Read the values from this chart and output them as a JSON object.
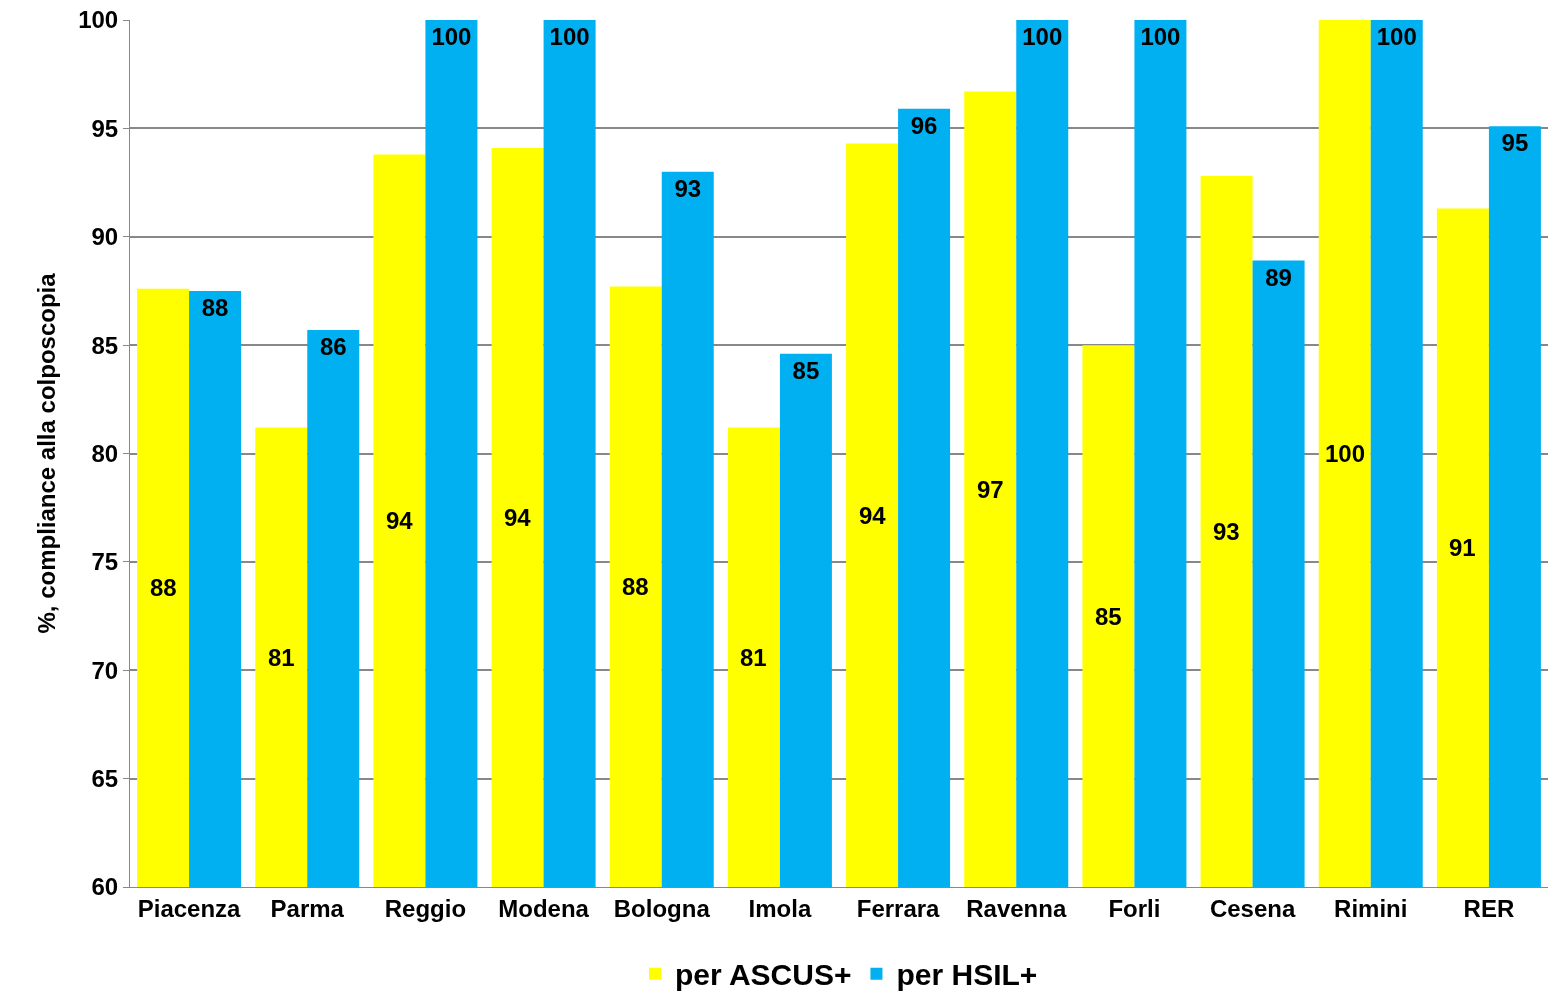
{
  "chart_data": {
    "type": "bar",
    "ylabel": "%, compliance alla colposcopia",
    "categories": [
      "Piacenza",
      "Parma",
      "Reggio",
      "Modena",
      "Bologna",
      "Imola",
      "Ferrara",
      "Ravenna",
      "Forli",
      "Cesena",
      "Rimini",
      "RER"
    ],
    "series": [
      {
        "name": "per ASCUS+",
        "color": "#ffff00",
        "values": [
          87.6,
          81.2,
          93.8,
          94.1,
          87.7,
          81.2,
          94.3,
          96.7,
          85.0,
          92.8,
          100,
          91.3
        ],
        "value_labels": [
          "88",
          "81",
          "94",
          "94",
          "88",
          "81",
          "94",
          "97",
          "85",
          "93",
          "100",
          "91"
        ]
      },
      {
        "name": "per HSIL+",
        "color": "#00b0f0",
        "values": [
          87.5,
          85.7,
          100,
          100,
          93.0,
          84.6,
          95.9,
          100,
          100,
          88.9,
          100,
          95.1
        ],
        "value_labels": [
          "88",
          "86",
          "100",
          "100",
          "93",
          "85",
          "96",
          "100",
          "100",
          "89",
          "100",
          "95"
        ]
      }
    ],
    "ylim": [
      60,
      100
    ],
    "yticks": [
      60,
      65,
      70,
      75,
      80,
      85,
      90,
      95,
      100
    ],
    "grid": "y",
    "legend": "bottom"
  }
}
